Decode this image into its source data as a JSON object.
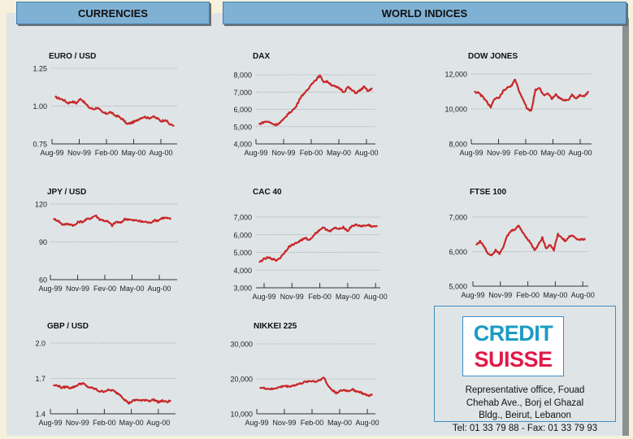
{
  "headers": {
    "currencies": "CURRENCIES",
    "world_indices": "WORLD INDICES"
  },
  "colors": {
    "line": "#c8282a",
    "header_bg": "#7fb1d4",
    "header_border": "#3b7fb5",
    "logo_blue": "#1b9bc4",
    "logo_red": "#e01b49"
  },
  "ad": {
    "logo_line1": "CREDIT",
    "logo_line2": "SUISSE",
    "line1": "Representative office, Fouad",
    "line2": "Chehab Ave., Borj el Ghazal",
    "line3": "Bldg., Beirut, Lebanon",
    "line4": "Tel: 01 33 79 88 - Fax: 01 33 79 93"
  },
  "chart_data": [
    {
      "id": "eurusd",
      "type": "line",
      "title": "EURO / USD",
      "ylim": [
        0.75,
        1.25
      ],
      "yticks": [
        "0.75",
        "1.00",
        "1.25"
      ],
      "ytick_values": [
        0.75,
        1.0,
        1.25
      ],
      "xticks": [
        "Aug-99",
        "Nov-99",
        "Feb-00",
        "May-00",
        "Aug-00"
      ],
      "x": [
        0,
        0.5,
        1,
        1.5,
        2,
        2.5,
        3,
        3.5,
        4,
        4.5,
        5,
        5.5,
        6,
        6.5,
        7,
        7.5,
        8,
        8.5,
        9,
        9.5,
        10,
        10.5,
        11,
        11.5,
        12,
        12.5,
        13,
        13.5,
        14
      ],
      "values": [
        1.06,
        1.05,
        1.04,
        1.02,
        1.03,
        1.02,
        1.05,
        1.02,
        0.99,
        0.98,
        0.99,
        0.96,
        0.95,
        0.96,
        0.94,
        0.93,
        0.91,
        0.88,
        0.89,
        0.9,
        0.92,
        0.93,
        0.92,
        0.93,
        0.92,
        0.9,
        0.91,
        0.88,
        0.87
      ]
    },
    {
      "id": "jpyusd",
      "type": "line",
      "title": "JPY / USD",
      "ylim": [
        60,
        120
      ],
      "yticks": [
        "60",
        "90",
        "120"
      ],
      "ytick_values": [
        60,
        90,
        120
      ],
      "xticks": [
        "Aug-99",
        "Nov-99",
        "Fev-00",
        "May-00",
        "Aug-00"
      ],
      "x": [
        0,
        0.5,
        1,
        1.5,
        2,
        2.5,
        3,
        3.5,
        4,
        4.5,
        5,
        5.5,
        6,
        6.5,
        7,
        7.5,
        8,
        8.5,
        9,
        9.5,
        10,
        10.5,
        11,
        11.5,
        12,
        12.5,
        13,
        13.5,
        14
      ],
      "values": [
        108,
        107,
        104,
        104,
        104,
        103,
        106,
        106,
        108,
        109,
        111,
        108,
        107,
        106,
        103,
        106,
        105,
        108,
        108,
        107,
        107,
        106,
        106,
        105,
        107,
        107,
        109,
        109,
        108
      ]
    },
    {
      "id": "gbpusd",
      "type": "line",
      "title": "GBP / USD",
      "ylim": [
        1.4,
        2.0
      ],
      "yticks": [
        "1.4",
        "1.7",
        "2.0"
      ],
      "ytick_values": [
        1.4,
        1.7,
        2.0
      ],
      "xticks": [
        "Aug-99",
        "Nov-99",
        "Feb-00",
        "May-00",
        "Aug-00"
      ],
      "x": [
        0,
        0.5,
        1,
        1.5,
        2,
        2.5,
        3,
        3.5,
        4,
        4.5,
        5,
        5.5,
        6,
        6.5,
        7,
        7.5,
        8,
        8.5,
        9,
        9.5,
        10,
        10.5,
        11,
        11.5,
        12,
        12.5,
        13,
        13.5,
        14
      ],
      "values": [
        1.64,
        1.64,
        1.62,
        1.63,
        1.62,
        1.63,
        1.65,
        1.66,
        1.63,
        1.62,
        1.61,
        1.59,
        1.59,
        1.6,
        1.6,
        1.58,
        1.56,
        1.52,
        1.49,
        1.51,
        1.52,
        1.51,
        1.52,
        1.51,
        1.52,
        1.5,
        1.51,
        1.5,
        1.51
      ]
    },
    {
      "id": "dax",
      "type": "line",
      "title": "DAX",
      "ylim": [
        4000,
        8000
      ],
      "yticks": [
        "4,000",
        "5,000",
        "6,000",
        "7,000",
        "8,000"
      ],
      "ytick_values": [
        4000,
        5000,
        6000,
        7000,
        8000
      ],
      "xticks": [
        "Aug-99",
        "Nov-99",
        "Feb-00",
        "May-00",
        "Aug-00"
      ],
      "x": [
        0,
        0.5,
        1,
        1.5,
        2,
        2.5,
        3,
        3.5,
        4,
        4.5,
        5,
        5.5,
        6,
        6.5,
        7,
        7.5,
        8,
        8.5,
        9,
        9.5,
        10,
        10.5,
        11,
        11.5,
        12,
        12.5,
        13,
        13.5,
        14
      ],
      "values": [
        5150,
        5250,
        5300,
        5200,
        5100,
        5200,
        5400,
        5700,
        5900,
        6100,
        6600,
        6900,
        7100,
        7500,
        7700,
        7950,
        7600,
        7600,
        7400,
        7300,
        7200,
        7000,
        7300,
        7100,
        6950,
        7100,
        7300,
        7050,
        7200
      ]
    },
    {
      "id": "cac40",
      "type": "line",
      "title": "CAC 40",
      "ylim": [
        3000,
        7000
      ],
      "yticks": [
        "3,000",
        "4,000",
        "5,000",
        "6,000",
        "7,000"
      ],
      "ytick_values": [
        3000,
        4000,
        5000,
        6000,
        7000
      ],
      "xticks": [
        "Aug-99",
        "Nov-99",
        "Feb-00",
        "May-00",
        "Aug-00"
      ],
      "x": [
        0,
        0.5,
        1,
        1.5,
        2,
        2.5,
        3,
        3.5,
        4,
        4.5,
        5,
        5.5,
        6,
        6.5,
        7,
        7.5,
        8,
        8.5,
        9,
        9.5,
        10,
        10.5,
        11,
        11.5,
        12,
        12.5,
        13,
        13.5,
        14
      ],
      "values": [
        4450,
        4600,
        4700,
        4650,
        4550,
        4700,
        5000,
        5300,
        5450,
        5550,
        5700,
        5800,
        5700,
        6000,
        6200,
        6400,
        6300,
        6200,
        6400,
        6300,
        6450,
        6200,
        6500,
        6550,
        6500,
        6500,
        6550,
        6450,
        6500
      ]
    },
    {
      "id": "nikkei225",
      "type": "line",
      "title": "NIKKEI 225",
      "ylim": [
        10000,
        30000
      ],
      "yticks": [
        "10,000",
        "20,000",
        "30,000"
      ],
      "ytick_values": [
        10000,
        20000,
        30000
      ],
      "xticks": [
        "Aug-99",
        "Nov-99",
        "Feb-00",
        "May-00",
        "Aug-00"
      ],
      "x": [
        0,
        0.5,
        1,
        1.5,
        2,
        2.5,
        3,
        3.5,
        4,
        4.5,
        5,
        5.5,
        6,
        6.5,
        7,
        7.5,
        8,
        8.5,
        9,
        9.5,
        10,
        10.5,
        11,
        11.5,
        12,
        12.5,
        13,
        13.5,
        14
      ],
      "values": [
        17500,
        17300,
        17200,
        17000,
        17400,
        17600,
        18000,
        17800,
        18000,
        18300,
        18600,
        19000,
        19300,
        19400,
        19200,
        19800,
        20300,
        18000,
        16800,
        16000,
        16500,
        16800,
        16500,
        17000,
        16500,
        16200,
        15600,
        15200,
        15400
      ]
    },
    {
      "id": "dowjones",
      "type": "line",
      "title": "DOW JONES",
      "ylim": [
        8000,
        12000
      ],
      "yticks": [
        "8,000",
        "10,000",
        "12,000"
      ],
      "ytick_values": [
        8000,
        10000,
        12000
      ],
      "xticks": [
        "Aug-99",
        "Nov-99",
        "Feb-00",
        "May-00",
        "Aug-00"
      ],
      "x": [
        0,
        0.5,
        1,
        1.5,
        2,
        2.5,
        3,
        3.5,
        4,
        4.5,
        5,
        5.5,
        6,
        6.5,
        7,
        7.5,
        8,
        8.5,
        9,
        9.5,
        10,
        10.5,
        11,
        11.5,
        12,
        12.5,
        13,
        13.5,
        14
      ],
      "values": [
        11000,
        10900,
        10700,
        10400,
        10100,
        10600,
        10600,
        11000,
        11200,
        11300,
        11700,
        11000,
        10500,
        10000,
        9900,
        11100,
        11200,
        10800,
        10900,
        10600,
        10800,
        10600,
        10500,
        10500,
        10800,
        10600,
        10800,
        10700,
        11000
      ]
    },
    {
      "id": "ftse100",
      "type": "line",
      "title": "FTSE 100",
      "ylim": [
        5000,
        7000
      ],
      "yticks": [
        "5,000",
        "6,000",
        "7,000"
      ],
      "ytick_values": [
        5000,
        6000,
        7000
      ],
      "xticks": [
        "Aug-99",
        "Nov-99",
        "Feb-00",
        "May-00",
        "Aug-00"
      ],
      "x": [
        0,
        0.5,
        1,
        1.5,
        2,
        2.5,
        3,
        3.5,
        4,
        4.5,
        5,
        5.5,
        6,
        6.5,
        7,
        7.5,
        8,
        8.5,
        9,
        9.5,
        10,
        10.5,
        11,
        11.5,
        12,
        12.5,
        13,
        13.5,
        14
      ],
      "values": [
        6200,
        6300,
        6150,
        5950,
        5900,
        6050,
        5950,
        6150,
        6450,
        6600,
        6650,
        6750,
        6550,
        6400,
        6250,
        6050,
        6200,
        6400,
        6100,
        6200,
        6050,
        6500,
        6400,
        6300,
        6450,
        6450,
        6350,
        6350,
        6350
      ]
    }
  ]
}
